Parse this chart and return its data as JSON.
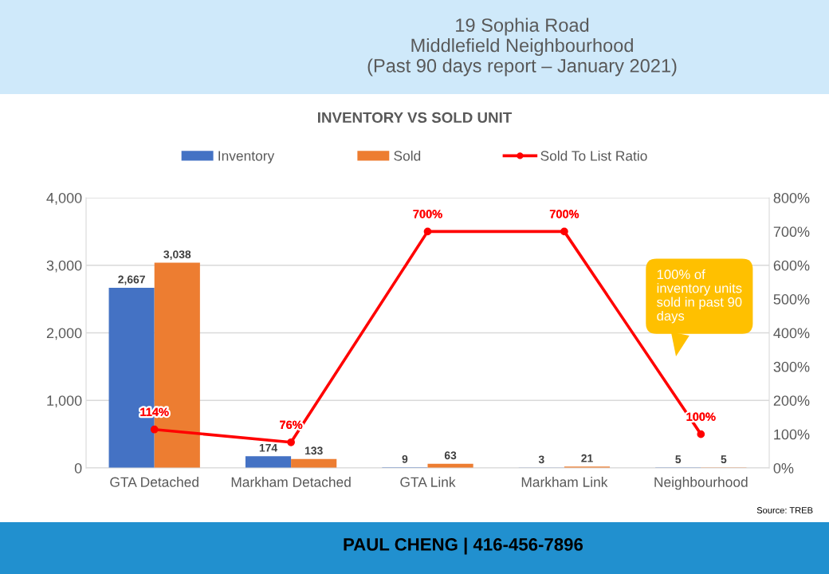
{
  "chart_data": {
    "type": "bar",
    "title": "19 Sophia Road\nMiddlefield Neighbourhood\n(Past 90 days report – January 2021)",
    "subtitle": "INVENTORY VS SOLD UNIT",
    "categories": [
      "GTA Detached",
      "Markham Detached",
      "GTA Link",
      "Markham Link",
      "Neighbourhood"
    ],
    "series": [
      {
        "name": "Inventory",
        "color": "#4472c4",
        "values": [
          2667,
          174,
          9,
          3,
          5
        ],
        "value_labels": [
          "2,667",
          "174",
          "9",
          "3",
          "5"
        ]
      },
      {
        "name": "Sold",
        "color": "#ed7d31",
        "values": [
          3038,
          133,
          63,
          21,
          5
        ],
        "value_labels": [
          "3,038",
          "133",
          "63",
          "21",
          "5"
        ]
      },
      {
        "name": "Sold To List Ratio",
        "type": "line",
        "axis": "y2",
        "color": "#ff0000",
        "values": [
          114,
          76,
          700,
          700,
          100
        ],
        "value_labels": [
          "114%",
          "76%",
          "700%",
          "700%",
          "100%"
        ]
      }
    ],
    "ylim": [
      0,
      4000
    ],
    "yticks": [
      0,
      {
        "value": 1000,
        "label": "1,000"
      },
      {
        "value": 2000,
        "label": "2,000"
      },
      {
        "value": 3000,
        "label": "3,000"
      },
      {
        "value": 4000,
        "label": "4,000"
      }
    ],
    "y2lim": [
      0,
      800
    ],
    "y2ticks": [
      {
        "value": 0,
        "label": "0%"
      },
      {
        "value": 100,
        "label": "100%"
      },
      {
        "value": 200,
        "label": "200%"
      },
      {
        "value": 300,
        "label": "300%"
      },
      {
        "value": 400,
        "label": "400%"
      },
      {
        "value": 500,
        "label": "500%"
      },
      {
        "value": 600,
        "label": "600%"
      },
      {
        "value": 700,
        "label": "700%"
      },
      {
        "value": 800,
        "label": "800%"
      }
    ],
    "grid": "y",
    "legend": "top",
    "marker": "circle",
    "annotations": [
      "100% of\ninventory units\nsold in past 90\ndays",
      "Source: TREB",
      "PAUL CHENG | 416-456-7896"
    ]
  }
}
